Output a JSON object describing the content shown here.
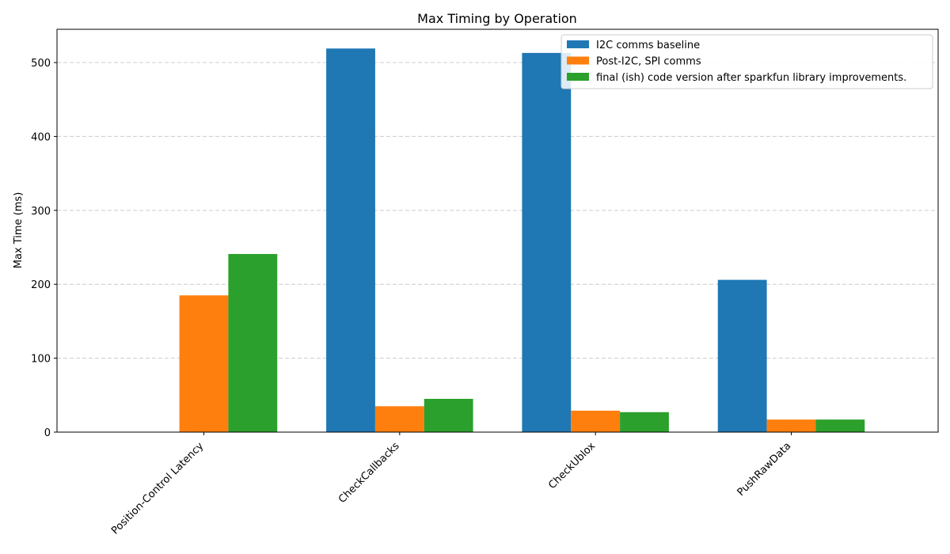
{
  "chart_data": {
    "type": "bar",
    "title": "Max Timing by Operation",
    "xlabel": "",
    "ylabel": "Max Time (ms)",
    "categories": [
      "Position-Control Latency",
      "CheckCallbacks",
      "CheckUblox",
      "PushRawData"
    ],
    "series": [
      {
        "name": "I2C comms baseline",
        "color": "#1f77b4",
        "values": [
          0,
          519,
          513,
          206
        ]
      },
      {
        "name": "Post-I2C, SPI comms",
        "color": "#ff7f0e",
        "values": [
          185,
          35,
          29,
          17
        ]
      },
      {
        "name": "final (ish) code version after sparkfun library improvements.",
        "color": "#2ca02c",
        "values": [
          241,
          45,
          27,
          17
        ]
      }
    ],
    "ylim": [
      0,
      545
    ],
    "yticks": [
      0,
      100,
      200,
      300,
      400,
      500
    ],
    "grid": true,
    "legend_position": "top-right"
  }
}
